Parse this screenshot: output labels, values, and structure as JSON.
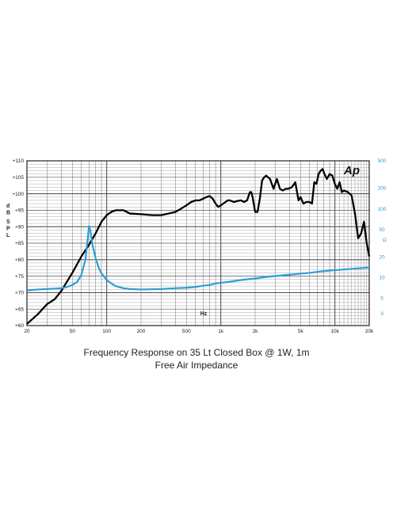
{
  "caption": {
    "line1": "Frequency Response on 35 Lt Closed Box @ 1W, 1m",
    "line2": "Free Air Impedance"
  },
  "chart_data": {
    "type": "line",
    "logo": "Ap",
    "xlabel": "Hz",
    "ylabel_left": "dB SPL",
    "ylabel_right": "Ω",
    "x_scale": "log",
    "xlim": [
      20,
      20000
    ],
    "ylim": [
      60,
      110
    ],
    "y2lim": [
      2,
      500
    ],
    "y2_scale": "log",
    "grid": true,
    "x_ticks": [
      "20",
      "50",
      "100",
      "200",
      "500",
      "1k",
      "2k",
      "5k",
      "10k",
      "20k"
    ],
    "y_ticks": [
      "+60",
      "+65",
      "+70",
      "+75",
      "+80",
      "+85",
      "+90",
      "+95",
      "+100",
      "+105",
      "+110"
    ],
    "y2_ticks": [
      "3",
      "5",
      "10",
      "20",
      "50",
      "100",
      "200",
      "500"
    ],
    "colors": {
      "spl": "#000000",
      "impedance": "#2b9fd6",
      "grid": "#555555"
    },
    "series": [
      {
        "axis": "left",
        "x": [
          20,
          25,
          30,
          35,
          40,
          50,
          60,
          70,
          80,
          90,
          100,
          110,
          120,
          140,
          160,
          200,
          250,
          300,
          350,
          400,
          450,
          500,
          550,
          600,
          650,
          700,
          750,
          800,
          850,
          900,
          950,
          1000,
          1050,
          1100,
          1150,
          1200,
          1300,
          1400,
          1500,
          1600,
          1700,
          1800,
          1850,
          1900,
          2000,
          2100,
          2200,
          2300,
          2400,
          2500,
          2700,
          2900,
          3100,
          3300,
          3500,
          3700,
          3900,
          4200,
          4500,
          4800,
          5000,
          5300,
          5600,
          6000,
          6300,
          6600,
          6900,
          7200,
          7500,
          7800,
          8100,
          8500,
          9000,
          9500,
          10000,
          10500,
          11000,
          11500,
          12000,
          13000,
          14000,
          15000,
          16000,
          17000,
          18000,
          19000,
          20000
        ],
        "values": [
          60.5,
          63.5,
          66.5,
          68,
          70.5,
          76,
          81,
          84.5,
          88,
          91.5,
          93.5,
          94.5,
          95,
          95,
          94,
          93.8,
          93.5,
          93.5,
          94,
          94.5,
          95.5,
          96.5,
          97.5,
          98,
          98,
          98.5,
          99,
          99.3,
          98.5,
          97,
          96,
          96.5,
          97,
          97.5,
          98,
          98,
          97.5,
          97.8,
          98,
          97.5,
          98,
          100.5,
          100.5,
          99,
          94.5,
          94.5,
          98.5,
          104,
          105,
          105.5,
          104.5,
          101.5,
          104.5,
          101.5,
          101,
          101.5,
          101.5,
          102,
          103.5,
          98,
          99,
          97,
          97.5,
          97.5,
          97,
          103.5,
          103,
          106,
          107,
          107.5,
          106,
          104.5,
          106,
          105.5,
          103,
          101.5,
          103.5,
          100.5,
          101,
          100.5,
          99.5,
          94,
          86.5,
          88,
          91.5,
          85,
          81
        ]
      },
      {
        "axis": "right",
        "x": [
          20,
          25,
          30,
          35,
          40,
          45,
          50,
          55,
          60,
          65,
          68,
          70,
          72,
          75,
          80,
          85,
          90,
          100,
          110,
          120,
          140,
          160,
          200,
          300,
          400,
          500,
          600,
          700,
          800,
          900,
          1000,
          1200,
          1500,
          2000,
          2500,
          3000,
          4000,
          5000,
          6000,
          7000,
          8000,
          10000,
          12000,
          15000,
          18000,
          20000
        ],
        "values": [
          6.5,
          6.7,
          6.8,
          6.9,
          7.0,
          7.3,
          7.8,
          8.6,
          11,
          18,
          35,
          56,
          48,
          30,
          19,
          14,
          11.5,
          9.2,
          8.2,
          7.5,
          7.0,
          6.8,
          6.7,
          6.8,
          7.0,
          7.1,
          7.3,
          7.6,
          7.8,
          8.2,
          8.4,
          8.7,
          9.2,
          9.7,
          10.2,
          10.5,
          11.0,
          11.4,
          11.7,
          12.1,
          12.4,
          12.8,
          13.1,
          13.5,
          13.8,
          14.0
        ]
      }
    ]
  }
}
